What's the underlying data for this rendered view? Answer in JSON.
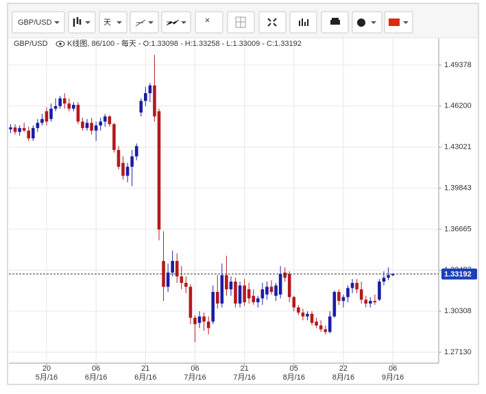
{
  "toolbar": {
    "symbol": "GBP/USD",
    "period": "天"
  },
  "chart_data": {
    "type": "candlestick",
    "title": "GBP/USD",
    "status": "K线图, 86/100 - 每天 - O:1.33098 - H:1.33258 - L:1.33009 - C:1.33192",
    "categories": [
      null,
      null,
      null,
      null,
      null,
      null,
      null,
      null,
      "20",
      null,
      null,
      null,
      null,
      null,
      null,
      null,
      null,
      null,
      null,
      "06",
      null,
      null,
      null,
      null,
      null,
      null,
      null,
      null,
      null,
      null,
      "21",
      null,
      null,
      null,
      null,
      null,
      null,
      null,
      null,
      null,
      null,
      "06",
      null,
      null,
      null,
      null,
      null,
      null,
      null,
      null,
      null,
      null,
      "21",
      null,
      null,
      null,
      null,
      null,
      null,
      null,
      null,
      null,
      null,
      "05",
      null,
      null,
      null,
      null,
      null,
      null,
      null,
      null,
      null,
      null,
      "22",
      null,
      null,
      null,
      null,
      null,
      null,
      null,
      null,
      null,
      null,
      "06"
    ],
    "category_months": [
      null,
      null,
      null,
      null,
      null,
      null,
      null,
      null,
      "5月/16",
      null,
      null,
      null,
      null,
      null,
      null,
      null,
      null,
      null,
      null,
      "6月/16",
      null,
      null,
      null,
      null,
      null,
      null,
      null,
      null,
      null,
      null,
      "6月/16",
      null,
      null,
      null,
      null,
      null,
      null,
      null,
      null,
      null,
      null,
      "7月/16",
      null,
      null,
      null,
      null,
      null,
      null,
      null,
      null,
      null,
      null,
      "7月/16",
      null,
      null,
      null,
      null,
      null,
      null,
      null,
      null,
      null,
      null,
      "8月/16",
      null,
      null,
      null,
      null,
      null,
      null,
      null,
      null,
      null,
      null,
      "8月/16",
      null,
      null,
      null,
      null,
      null,
      null,
      null,
      null,
      null,
      null,
      "9月/16"
    ],
    "open": [
      1.444,
      1.4455,
      1.442,
      1.445,
      1.443,
      1.437,
      1.445,
      1.449,
      1.458,
      1.452,
      1.46,
      1.462,
      1.468,
      1.464,
      1.46,
      1.463,
      1.45,
      1.445,
      1.449,
      1.443,
      1.447,
      1.45,
      1.454,
      1.448,
      1.428,
      1.418,
      1.408,
      1.415,
      1.423,
      1.457,
      1.466,
      1.472,
      1.478,
      1.458,
      1.342,
      1.322,
      1.333,
      1.342,
      1.33,
      1.325,
      1.322,
      1.298,
      1.294,
      1.299,
      1.295,
      1.295,
      1.318,
      1.309,
      1.331,
      1.32,
      1.326,
      1.309,
      1.323,
      1.32,
      1.315,
      1.31,
      1.313,
      1.316,
      1.322,
      1.315,
      1.316,
      1.333,
      1.332,
      1.314,
      1.306,
      1.302,
      1.299,
      1.301,
      1.295,
      1.292,
      1.289,
      1.287,
      1.299,
      1.318,
      1.311,
      1.314,
      1.321,
      1.325,
      1.32,
      1.312,
      1.309,
      1.311,
      1.312,
      1.326,
      1.329,
      1.33098
    ],
    "high": [
      1.448,
      1.448,
      1.447,
      1.449,
      1.446,
      1.447,
      1.452,
      1.456,
      1.461,
      1.464,
      1.468,
      1.47,
      1.472,
      1.468,
      1.465,
      1.465,
      1.453,
      1.452,
      1.453,
      1.45,
      1.453,
      1.456,
      1.455,
      1.449,
      1.431,
      1.423,
      1.418,
      1.428,
      1.433,
      1.468,
      1.477,
      1.48,
      1.5017,
      1.46,
      1.365,
      1.34,
      1.35,
      1.348,
      1.338,
      1.33,
      1.324,
      1.3,
      1.303,
      1.302,
      1.299,
      1.323,
      1.331,
      1.34,
      1.346,
      1.33,
      1.329,
      1.326,
      1.328,
      1.325,
      1.32,
      1.315,
      1.325,
      1.326,
      1.327,
      1.325,
      1.338,
      1.337,
      1.334,
      1.315,
      1.308,
      1.305,
      1.303,
      1.303,
      1.298,
      1.296,
      1.292,
      1.303,
      1.319,
      1.32,
      1.316,
      1.323,
      1.328,
      1.328,
      1.326,
      1.315,
      1.314,
      1.316,
      1.328,
      1.334,
      1.337,
      1.33258
    ],
    "low": [
      1.441,
      1.44,
      1.439,
      1.442,
      1.435,
      1.435,
      1.442,
      1.447,
      1.447,
      1.45,
      1.458,
      1.46,
      1.46,
      1.458,
      1.458,
      1.448,
      1.443,
      1.443,
      1.44,
      1.435,
      1.443,
      1.446,
      1.446,
      1.426,
      1.413,
      1.405,
      1.403,
      1.4,
      1.42,
      1.454,
      1.462,
      1.465,
      1.45,
      1.358,
      1.311,
      1.318,
      1.33,
      1.325,
      1.32,
      1.317,
      1.293,
      1.279,
      1.29,
      1.288,
      1.285,
      1.293,
      1.305,
      1.306,
      1.315,
      1.315,
      1.306,
      1.306,
      1.307,
      1.309,
      1.308,
      1.306,
      1.308,
      1.312,
      1.316,
      1.311,
      1.313,
      1.326,
      1.31,
      1.303,
      1.3,
      1.296,
      1.296,
      1.292,
      1.29,
      1.287,
      1.285,
      1.286,
      1.298,
      1.308,
      1.306,
      1.31,
      1.317,
      1.317,
      1.309,
      1.306,
      1.306,
      1.308,
      1.311,
      1.323,
      1.327,
      1.33009
    ],
    "close": [
      1.4455,
      1.442,
      1.445,
      1.443,
      1.437,
      1.445,
      1.449,
      1.452,
      1.45,
      1.46,
      1.462,
      1.468,
      1.464,
      1.46,
      1.463,
      1.45,
      1.445,
      1.449,
      1.443,
      1.447,
      1.45,
      1.454,
      1.448,
      1.428,
      1.415,
      1.408,
      1.415,
      1.423,
      1.431,
      1.466,
      1.472,
      1.478,
      1.454,
      1.3664,
      1.322,
      1.333,
      1.342,
      1.33,
      1.325,
      1.322,
      1.298,
      1.293,
      1.299,
      1.295,
      1.29,
      1.318,
      1.309,
      1.331,
      1.32,
      1.326,
      1.309,
      1.323,
      1.31,
      1.313,
      1.31,
      1.313,
      1.32,
      1.322,
      1.318,
      1.323,
      1.332,
      1.329,
      1.314,
      1.306,
      1.302,
      1.299,
      1.301,
      1.294,
      1.292,
      1.289,
      1.287,
      1.299,
      1.318,
      1.311,
      1.314,
      1.321,
      1.325,
      1.32,
      1.312,
      1.309,
      1.311,
      1.31,
      1.326,
      1.329,
      1.331,
      1.33192
    ],
    "up_color": "#1c1ca6",
    "down_color": "#b3191c",
    "last_color": "#1c40b8",
    "ylim": [
      1.2628,
      1.515
    ],
    "yticks": [
      1.49378,
      {
        "value": 1.462,
        "label": "1.46200"
      },
      1.43021,
      1.39843,
      1.36665,
      1.33487,
      1.30308,
      {
        "value": 1.2713,
        "label": "1.27130"
      }
    ],
    "grid": true
  }
}
